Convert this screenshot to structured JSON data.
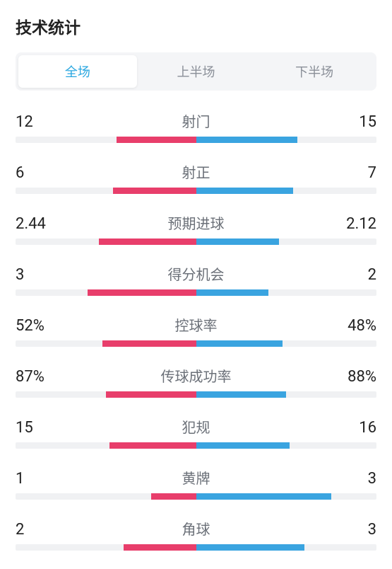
{
  "title": "技术统计",
  "tabs": {
    "full": "全场",
    "first": "上半场",
    "second": "下半场",
    "active_index": 0
  },
  "colors": {
    "home": "#e83e6b",
    "away": "#3aa4e0",
    "track": "#f0f1f3",
    "tab_bg": "#f4f5f7",
    "tab_active_text": "#2aa7e0",
    "tab_inactive_text": "#8a8f98",
    "label_text": "#6b7078",
    "value_text": "#222222"
  },
  "stats": [
    {
      "label": "射门",
      "home_display": "12",
      "away_display": "15",
      "home_pct": 44,
      "away_pct": 56
    },
    {
      "label": "射正",
      "home_display": "6",
      "away_display": "7",
      "home_pct": 46,
      "away_pct": 54
    },
    {
      "label": "预期进球",
      "home_display": "2.44",
      "away_display": "2.12",
      "home_pct": 54,
      "away_pct": 46
    },
    {
      "label": "得分机会",
      "home_display": "3",
      "away_display": "2",
      "home_pct": 60,
      "away_pct": 40
    },
    {
      "label": "控球率",
      "home_display": "52%",
      "away_display": "48%",
      "home_pct": 52,
      "away_pct": 48
    },
    {
      "label": "传球成功率",
      "home_display": "87%",
      "away_display": "88%",
      "home_pct": 50,
      "away_pct": 50
    },
    {
      "label": "犯规",
      "home_display": "15",
      "away_display": "16",
      "home_pct": 48,
      "away_pct": 52
    },
    {
      "label": "黄牌",
      "home_display": "1",
      "away_display": "3",
      "home_pct": 25,
      "away_pct": 75
    },
    {
      "label": "角球",
      "home_display": "2",
      "away_display": "3",
      "home_pct": 40,
      "away_pct": 60
    }
  ]
}
